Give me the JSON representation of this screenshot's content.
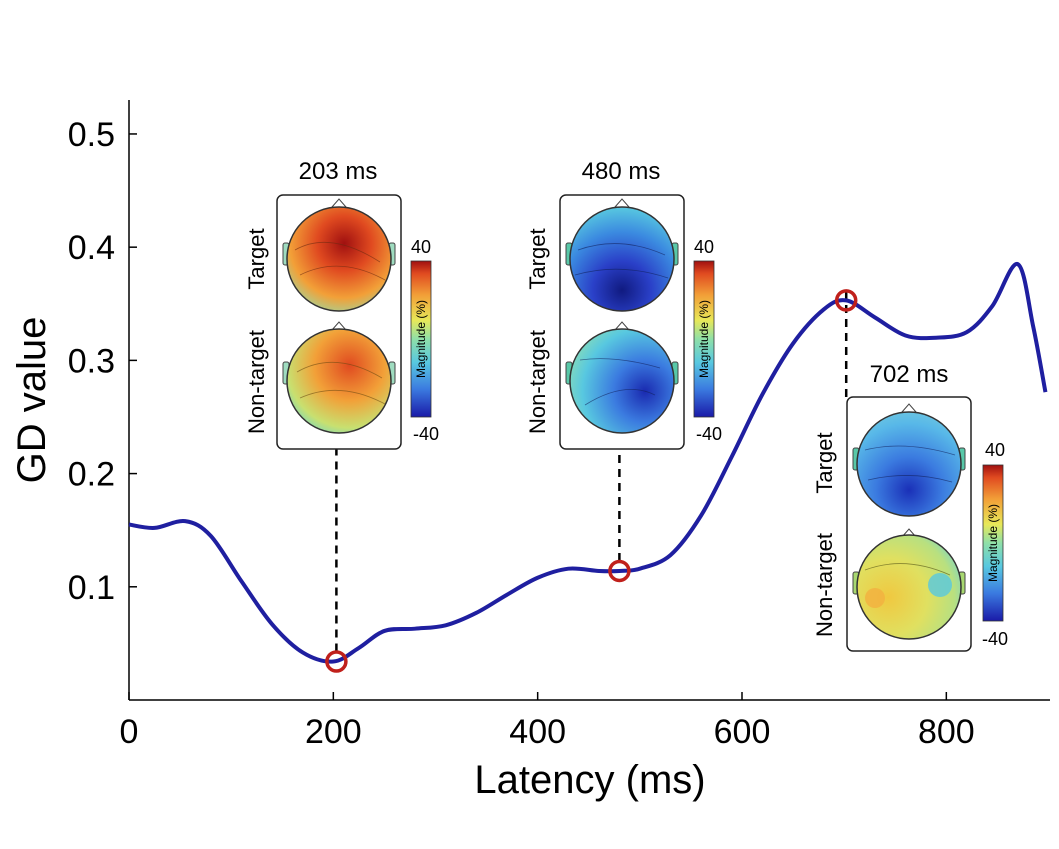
{
  "chart_data": {
    "type": "line",
    "title": "",
    "xlabel": "Latency (ms)",
    "ylabel": "GD value",
    "xlim": [
      0,
      900
    ],
    "ylim": [
      0,
      0.53
    ],
    "xticks": [
      0,
      200,
      400,
      600,
      800
    ],
    "xtick_labels": [
      "0",
      "200",
      "400",
      "600",
      "800"
    ],
    "yticks": [
      0.1,
      0.2,
      0.3,
      0.4,
      0.5
    ],
    "ytick_labels": [
      "0.1",
      "0.2",
      "0.3",
      "0.4",
      "0.5"
    ],
    "grid": false,
    "line_color": "#1f1fa0",
    "marker_color": "#c0201b",
    "series": [
      {
        "name": "GD value",
        "x": [
          0,
          25,
          55,
          80,
          110,
          140,
          170,
          200,
          225,
          250,
          280,
          310,
          340,
          370,
          400,
          430,
          460,
          480,
          500,
          530,
          560,
          590,
          620,
          650,
          680,
          702,
          730,
          760,
          790,
          820,
          845,
          870,
          885,
          897
        ],
        "y": [
          0.155,
          0.152,
          0.158,
          0.145,
          0.105,
          0.067,
          0.042,
          0.034,
          0.046,
          0.061,
          0.063,
          0.066,
          0.077,
          0.093,
          0.108,
          0.116,
          0.114,
          0.114,
          0.116,
          0.128,
          0.163,
          0.215,
          0.27,
          0.315,
          0.345,
          0.353,
          0.338,
          0.322,
          0.32,
          0.325,
          0.348,
          0.385,
          0.33,
          0.272
        ]
      }
    ],
    "highlighted_points": [
      {
        "x": 203,
        "y": 0.034,
        "label": "203 ms"
      },
      {
        "x": 480,
        "y": 0.114,
        "label": "480 ms"
      },
      {
        "x": 702,
        "y": 0.353,
        "label": "702 ms"
      }
    ],
    "topomaps": [
      {
        "latency_label": "203 ms",
        "conditions": [
          "Target",
          "Non-target"
        ],
        "colorbar_label": "Magnitude (%)",
        "colorbar_max": "40",
        "colorbar_min": "-40"
      },
      {
        "latency_label": "480 ms",
        "conditions": [
          "Target",
          "Non-target"
        ],
        "colorbar_label": "Magnitude (%)",
        "colorbar_max": "40",
        "colorbar_min": "-40"
      },
      {
        "latency_label": "702 ms",
        "conditions": [
          "Target",
          "Non-target"
        ],
        "colorbar_label": "Magnitude (%)",
        "colorbar_max": "40",
        "colorbar_min": "-40"
      }
    ],
    "colormap": [
      "#1a1aa8",
      "#3b7be0",
      "#58c8e0",
      "#8fe0a8",
      "#e8e858",
      "#f2a038",
      "#e04a20",
      "#a01010"
    ]
  }
}
